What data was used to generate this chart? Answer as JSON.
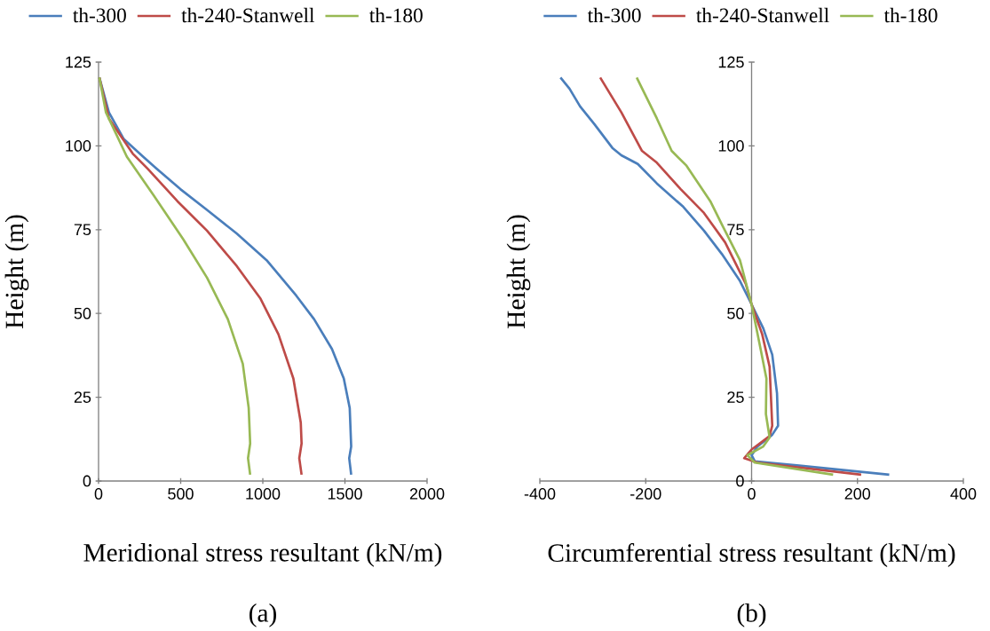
{
  "chart_data": [
    {
      "type": "line",
      "xlabel": "Meridional stress resultant (kN/m)",
      "ylabel": "Height (m)",
      "xlim": [
        0,
        2000
      ],
      "ylim": [
        0,
        125
      ],
      "xticks": [
        0,
        500,
        1000,
        1500,
        2000
      ],
      "yticks": [
        0,
        25,
        50,
        75,
        100,
        125
      ],
      "legend": "top",
      "annotations": [
        "(a)"
      ],
      "series": [
        {
          "name": "th-300",
          "color": "#4a7ebb",
          "x": [
            5,
            63,
            154,
            271,
            353,
            498,
            660,
            842,
            1023,
            1204,
            1312,
            1421,
            1493,
            1529,
            1538,
            1526,
            1538
          ],
          "values": [
            120.4,
            110,
            102,
            96.8,
            93.2,
            87.1,
            80.9,
            73.8,
            65.9,
            55.3,
            48.3,
            39.4,
            30.6,
            21.8,
            10.3,
            6.8,
            1.9
          ]
        },
        {
          "name": "th-240-Stanwell",
          "color": "#be4b48",
          "x": [
            5,
            63,
            208,
            299,
            480,
            660,
            842,
            986,
            1095,
            1186,
            1231,
            1236,
            1222,
            1236
          ],
          "values": [
            120.4,
            108.2,
            97.7,
            93.2,
            83.5,
            74.7,
            64.1,
            54.4,
            43.8,
            30.6,
            17.4,
            11.2,
            6.8,
            1.9
          ]
        },
        {
          "name": "th-180",
          "color": "#98b954",
          "x": [
            5,
            45,
            172,
            335,
            516,
            661,
            787,
            878,
            914,
            923,
            910,
            923
          ],
          "values": [
            120.4,
            110,
            96.8,
            85.3,
            72.1,
            60.6,
            48.3,
            35.0,
            21.8,
            11.2,
            6.8,
            1.9
          ]
        }
      ]
    },
    {
      "type": "line",
      "xlabel": "Circumferential stress resultant (kN/m)",
      "ylabel": "Height (m)",
      "xlim": [
        -400,
        400
      ],
      "ylim": [
        0,
        125
      ],
      "xticks": [
        -400,
        -200,
        0,
        200,
        400
      ],
      "yticks": [
        0,
        25,
        50,
        75,
        100,
        125
      ],
      "legend": "top",
      "annotations": [
        "(b)"
      ],
      "series": [
        {
          "name": "th-300",
          "color": "#4a7ebb",
          "x": [
            -361,
            -344,
            -324,
            -297,
            -263,
            -246,
            -215,
            -179,
            -129,
            -90,
            -56,
            -22,
            0,
            22,
            39,
            48,
            50,
            39,
            11,
            0,
            6,
            90,
            260
          ],
          "values": [
            120.4,
            117.1,
            111.8,
            106.5,
            99.4,
            97.2,
            94.6,
            88.8,
            81.8,
            74.7,
            67.7,
            59.7,
            52.7,
            45.6,
            37.7,
            26.2,
            16.5,
            13.8,
            10.3,
            7.7,
            5.9,
            4.6,
            1.9
          ]
        },
        {
          "name": "th-240-Stanwell",
          "color": "#be4b48",
          "x": [
            -286,
            -246,
            -207,
            -179,
            -134,
            -90,
            -50,
            -11,
            0,
            20,
            34,
            39,
            34,
            0,
            -14,
            11,
            207
          ],
          "values": [
            120.4,
            110,
            98.5,
            95,
            87.1,
            80,
            71.2,
            58.8,
            52.7,
            43.8,
            34.1,
            16.5,
            13.4,
            9.4,
            6.8,
            5.5,
            1.9
          ]
        },
        {
          "name": "th-180",
          "color": "#98b954",
          "x": [
            -217,
            -179,
            -151,
            -123,
            -78,
            -56,
            -22,
            0,
            17,
            28,
            27,
            34,
            22,
            -8,
            6,
            154
          ],
          "values": [
            120.4,
            108.2,
            98.5,
            94.1,
            83.5,
            76.5,
            65.9,
            52.7,
            39.4,
            30.6,
            20,
            13,
            10.3,
            7.7,
            5.5,
            1.9
          ]
        }
      ]
    }
  ]
}
